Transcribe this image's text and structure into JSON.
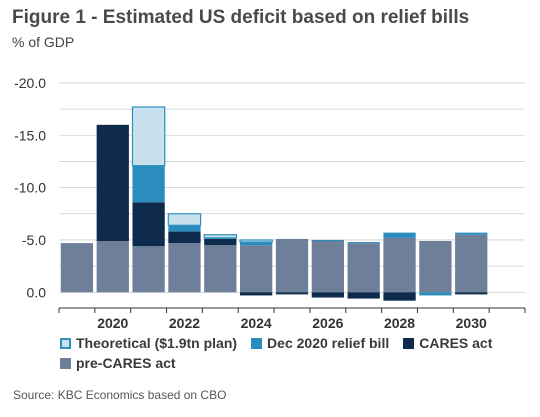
{
  "figure": {
    "title": "Figure 1 - Estimated US deficit based on relief bills",
    "subtitle": "% of GDP",
    "source": "Source: KBC Economics based on CBO"
  },
  "colors": {
    "theoretical_fill": "#c9e1ef",
    "theoretical_border": "#2f8fbd",
    "dec2020": "#2a8dbe",
    "cares": "#0e2a4d",
    "precares": "#6e7f9a",
    "grid": "#cfcfcf"
  },
  "chart_data": {
    "type": "bar",
    "stacked": true,
    "categories": [
      "2019",
      "2020",
      "2021",
      "2022",
      "2023",
      "2024",
      "2025",
      "2026",
      "2027",
      "2028",
      "2029",
      "2030",
      "2031"
    ],
    "x_tick_labels": [
      "2020",
      "2022",
      "2024",
      "2026",
      "2028",
      "2030"
    ],
    "y_tick_labels": [
      "-20.0",
      "-15.0",
      "-10.0",
      "-5.0",
      "0.0"
    ],
    "ylim": [
      1.5,
      -22
    ],
    "grid": true,
    "series": [
      {
        "name": "pre-CARES act",
        "values": [
          -4.7,
          -4.9,
          -4.4,
          -4.7,
          -4.5,
          -4.5,
          -5.1,
          -4.9,
          -4.7,
          -5.2,
          -4.9,
          -5.5,
          0
        ]
      },
      {
        "name": "CARES act",
        "values": [
          0,
          -11.1,
          -4.2,
          -1.1,
          -0.6,
          0.3,
          0.2,
          0.5,
          0.6,
          0.8,
          0,
          0.2,
          0
        ]
      },
      {
        "name": "Dec 2020 relief bill",
        "values": [
          0,
          0,
          -3.5,
          -0.6,
          -0.1,
          -0.3,
          0,
          -0.1,
          -0.1,
          -0.5,
          0.3,
          -0.2,
          0
        ]
      },
      {
        "name": "Theoretical ($1.9tn plan)",
        "values": [
          0,
          0,
          -5.6,
          -1.1,
          -0.3,
          -0.2,
          0,
          0,
          0,
          0,
          0,
          0,
          0
        ]
      }
    ]
  },
  "legend": {
    "theoretical": "Theoretical ($1.9tn plan)",
    "dec2020": "Dec 2020 relief bill",
    "cares": "CARES act",
    "precares": "pre-CARES act"
  }
}
